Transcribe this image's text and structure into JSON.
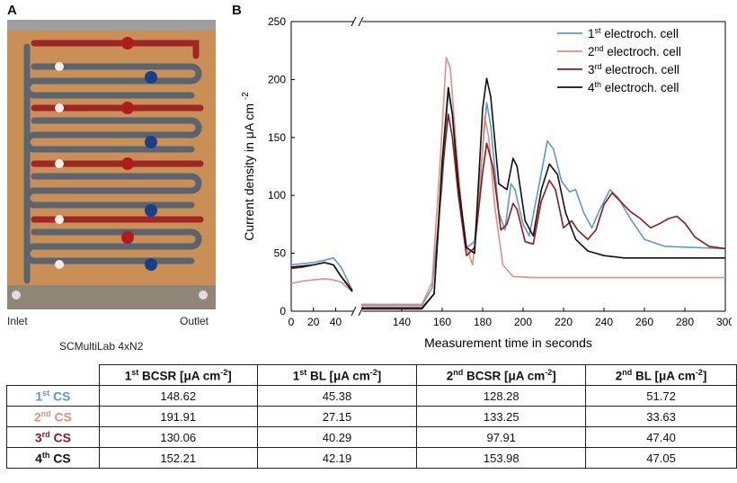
{
  "panel_a": {
    "label": "A",
    "inlet": "Inlet",
    "outlet": "Outlet",
    "caption": "SCMultiLab 4xN2"
  },
  "panel_b": {
    "label": "B"
  },
  "colors": {
    "cell1": "#5b9bc4",
    "cell2": "#e08f82",
    "cell3": "#8b1a1a",
    "cell4": "#111111"
  },
  "chart_data": {
    "type": "line",
    "xlabel": "Measurement time in seconds",
    "ylabel": "Current density in μA cm",
    "ylabel_sup": "-2",
    "ylim": [
      0,
      250
    ],
    "yticks": [
      "0",
      "50",
      "100",
      "150",
      "200",
      "250"
    ],
    "x_axis_break": true,
    "xticks": [
      "0",
      "20",
      "40",
      "140",
      "160",
      "180",
      "200",
      "220",
      "240",
      "260",
      "280",
      "300"
    ],
    "legend_placement": "top-right",
    "series": [
      {
        "name_sup": "st",
        "name_rest": " electroch. cell",
        "name_num": "1",
        "color": "#5b9bc4",
        "segments": [
          [
            [
              0,
              40
            ],
            [
              10,
              41
            ],
            [
              20,
              42
            ],
            [
              30,
              44
            ],
            [
              38,
              46
            ],
            [
              45,
              38
            ],
            [
              55,
              18
            ]
          ],
          [
            [
              120,
              5
            ],
            [
              150,
              5
            ],
            [
              155,
              20
            ],
            [
              160,
              110
            ],
            [
              163,
              190
            ],
            [
              165,
              170
            ],
            [
              168,
              100
            ],
            [
              172,
              55
            ],
            [
              176,
              60
            ],
            [
              180,
              140
            ],
            [
              182,
              180
            ],
            [
              184,
              160
            ],
            [
              188,
              85
            ],
            [
              191,
              70
            ],
            [
              194,
              110
            ],
            [
              196,
              105
            ],
            [
              200,
              75
            ],
            [
              203,
              65
            ],
            [
              208,
              110
            ],
            [
              212,
              147
            ],
            [
              215,
              140
            ],
            [
              219,
              112
            ],
            [
              223,
              103
            ],
            [
              226,
              105
            ],
            [
              230,
              85
            ],
            [
              234,
              72
            ],
            [
              238,
              88
            ],
            [
              243,
              105
            ],
            [
              247,
              98
            ],
            [
              253,
              80
            ],
            [
              260,
              62
            ],
            [
              270,
              56
            ],
            [
              285,
              55
            ],
            [
              300,
              54
            ]
          ]
        ]
      },
      {
        "name_sup": "nd",
        "name_rest": " electroch. cell",
        "name_num": "2",
        "color": "#e08f82",
        "segments": [
          [
            [
              0,
              24
            ],
            [
              10,
              26
            ],
            [
              20,
              27
            ],
            [
              30,
              28
            ],
            [
              38,
              27
            ],
            [
              45,
              25
            ],
            [
              55,
              17
            ]
          ],
          [
            [
              120,
              6
            ],
            [
              150,
              6
            ],
            [
              155,
              25
            ],
            [
              159,
              130
            ],
            [
              162,
              219
            ],
            [
              164,
              210
            ],
            [
              167,
              140
            ],
            [
              171,
              60
            ],
            [
              175,
              40
            ],
            [
              178,
              90
            ],
            [
              181,
              168
            ],
            [
              183,
              150
            ],
            [
              186,
              90
            ],
            [
              190,
              40
            ],
            [
              195,
              30
            ],
            [
              205,
              29
            ],
            [
              230,
              29
            ],
            [
              260,
              29
            ],
            [
              300,
              29
            ]
          ]
        ]
      },
      {
        "name_sup": "rd",
        "name_rest": " electroch. cell",
        "name_num": "3",
        "color": "#8b1a1a",
        "segments": [
          [
            [
              0,
              37
            ],
            [
              10,
              38
            ],
            [
              20,
              40
            ],
            [
              30,
              42
            ],
            [
              38,
              40
            ],
            [
              45,
              30
            ],
            [
              55,
              18
            ]
          ],
          [
            [
              120,
              3
            ],
            [
              150,
              3
            ],
            [
              156,
              15
            ],
            [
              160,
              120
            ],
            [
              163,
              170
            ],
            [
              165,
              150
            ],
            [
              168,
              100
            ],
            [
              172,
              48
            ],
            [
              176,
              55
            ],
            [
              180,
              120
            ],
            [
              182,
              145
            ],
            [
              185,
              125
            ],
            [
              189,
              70
            ],
            [
              192,
              75
            ],
            [
              195,
              93
            ],
            [
              197,
              88
            ],
            [
              201,
              60
            ],
            [
              205,
              58
            ],
            [
              209,
              95
            ],
            [
              213,
              113
            ],
            [
              216,
              105
            ],
            [
              220,
              72
            ],
            [
              224,
              78
            ],
            [
              227,
              70
            ],
            [
              232,
              62
            ],
            [
              236,
              70
            ],
            [
              240,
              92
            ],
            [
              244,
              102
            ],
            [
              248,
              95
            ],
            [
              253,
              86
            ],
            [
              258,
              80
            ],
            [
              263,
              72
            ],
            [
              268,
              76
            ],
            [
              272,
              80
            ],
            [
              276,
              82
            ],
            [
              280,
              76
            ],
            [
              285,
              64
            ],
            [
              292,
              56
            ],
            [
              300,
              54
            ]
          ]
        ]
      },
      {
        "name_sup": "th",
        "name_rest": " electroch. cell",
        "name_num": "4",
        "color": "#111111",
        "segments": [
          [
            [
              0,
              38
            ],
            [
              10,
              39
            ],
            [
              20,
              40
            ],
            [
              30,
              42
            ],
            [
              38,
              40
            ],
            [
              45,
              30
            ],
            [
              55,
              17
            ]
          ],
          [
            [
              120,
              2
            ],
            [
              150,
              2
            ],
            [
              156,
              15
            ],
            [
              160,
              130
            ],
            [
              163,
              193
            ],
            [
              165,
              170
            ],
            [
              168,
              110
            ],
            [
              172,
              55
            ],
            [
              176,
              50
            ],
            [
              180,
              175
            ],
            [
              182,
              201
            ],
            [
              184,
              185
            ],
            [
              188,
              110
            ],
            [
              192,
              105
            ],
            [
              195,
              132
            ],
            [
              197,
              125
            ],
            [
              201,
              78
            ],
            [
              205,
              65
            ],
            [
              209,
              105
            ],
            [
              213,
              127
            ],
            [
              217,
              118
            ],
            [
              221,
              85
            ],
            [
              226,
              62
            ],
            [
              232,
              52
            ],
            [
              240,
              48
            ],
            [
              250,
              46
            ],
            [
              270,
              46
            ],
            [
              300,
              46
            ]
          ]
        ]
      }
    ]
  },
  "table": {
    "headers": [
      {
        "num": "1",
        "sup": "st",
        "rest": " BCSR [μA cm",
        "unit_sup": "-2",
        "close": "]"
      },
      {
        "num": "1",
        "sup": "st",
        "rest": " BL [μA cm",
        "unit_sup": "-2",
        "close": "]"
      },
      {
        "num": "2",
        "sup": "nd",
        "rest": " BCSR [μA cm",
        "unit_sup": "-2",
        "close": "]"
      },
      {
        "num": "2",
        "sup": "nd",
        "rest": " BL [μA cm",
        "unit_sup": "-2",
        "close": "]"
      }
    ],
    "rows": [
      {
        "num": "1",
        "sup": "st",
        "label": " CS",
        "color": "#5b9bc4",
        "values": [
          "148.62",
          "45.38",
          "128.28",
          "51.72"
        ]
      },
      {
        "num": "2",
        "sup": "nd",
        "label": " CS",
        "color": "#e08f82",
        "values": [
          "191.91",
          "27.15",
          "133.25",
          "33.63"
        ]
      },
      {
        "num": "3",
        "sup": "rd",
        "label": " CS",
        "color": "#8b1a1a",
        "values": [
          "130.06",
          "40.29",
          "97.91",
          "47.40"
        ]
      },
      {
        "num": "4",
        "sup": "th",
        "label": " CS",
        "color": "#111111",
        "values": [
          "152.21",
          "42.19",
          "153.98",
          "47.05"
        ]
      }
    ]
  }
}
